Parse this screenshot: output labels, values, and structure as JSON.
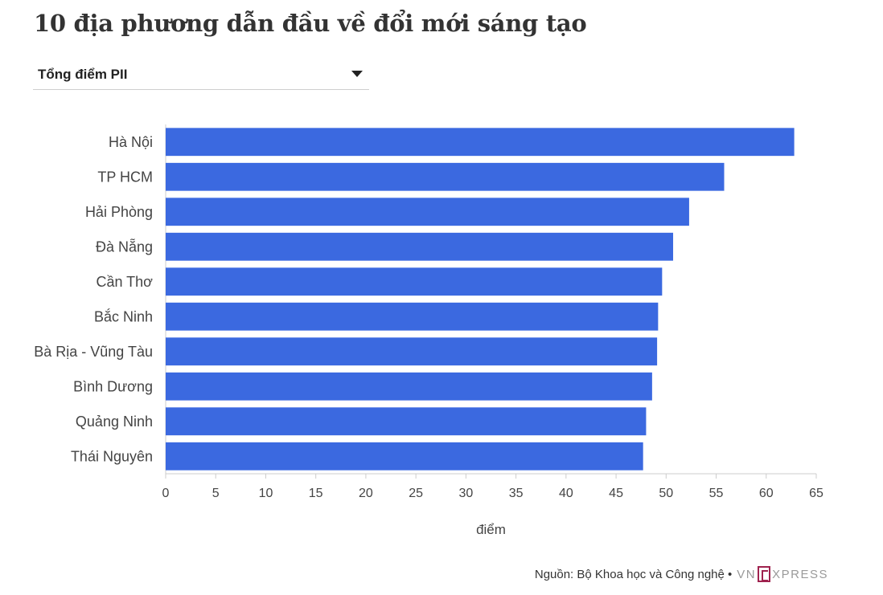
{
  "title": "10 địa phương dẫn đầu về đổi mới sáng tạo",
  "selector": {
    "selected": "Tổng điểm PII"
  },
  "footer": {
    "source": "Nguồn: Bộ Khoa học và Công nghệ •",
    "logo_left": "VN",
    "logo_right": "XPRESS"
  },
  "colors": {
    "bar": "#3b69e0",
    "axis": "#cccccc"
  },
  "chart_data": {
    "type": "bar",
    "orientation": "horizontal",
    "categories": [
      "Hà Nội",
      "TP HCM",
      "Hải Phòng",
      "Đà Nẵng",
      "Cần Thơ",
      "Bắc Ninh",
      "Bà Rịa - Vũng Tàu",
      "Bình Dương",
      "Quảng Ninh",
      "Thái Nguyên"
    ],
    "values": [
      62.8,
      55.8,
      52.3,
      50.7,
      49.6,
      49.2,
      49.1,
      48.6,
      48.0,
      47.7
    ],
    "xlabel": "điểm",
    "xlim": [
      0,
      65
    ],
    "xticks": [
      0,
      5,
      10,
      15,
      20,
      25,
      30,
      35,
      40,
      45,
      50,
      55,
      60,
      65
    ],
    "grid": false,
    "legend": "none"
  }
}
